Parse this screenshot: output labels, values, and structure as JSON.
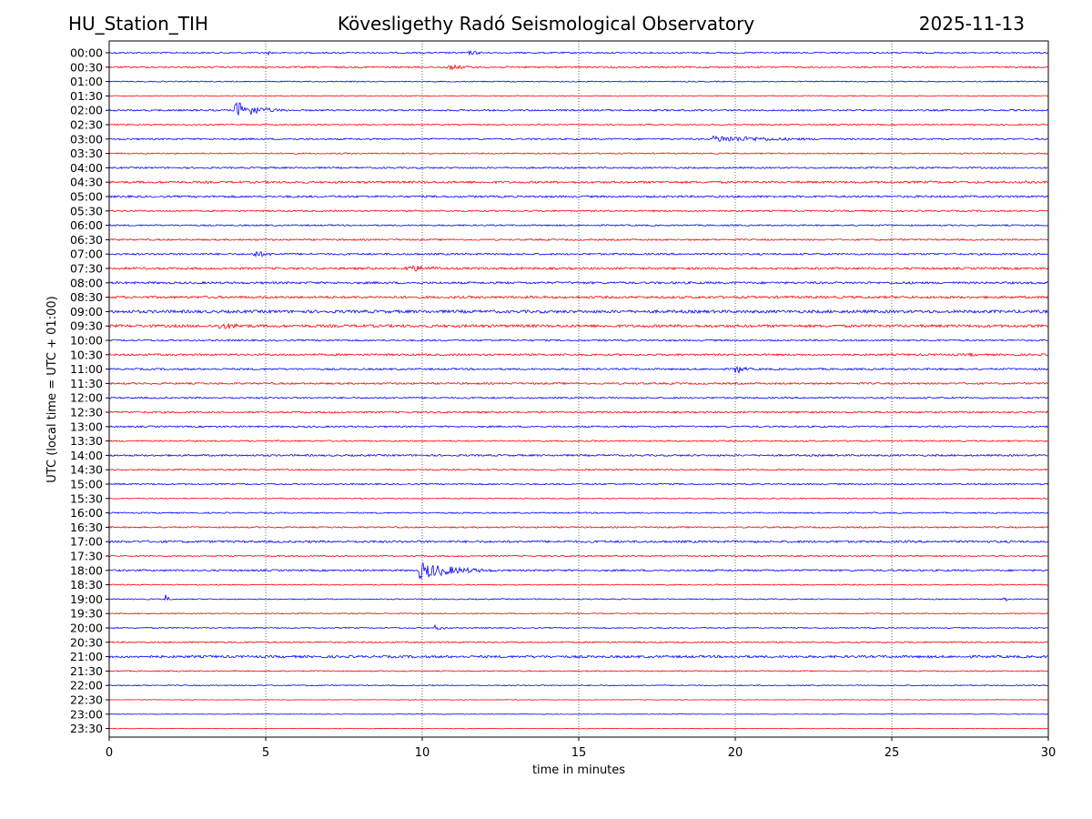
{
  "header": {
    "station": "HU_Station_TIH",
    "observatory": "Kövesligethy Radó Seismological Observatory",
    "date": "2025-11-13"
  },
  "chart_data": {
    "type": "line",
    "title": "Kövesligethy Radó Seismological Observatory",
    "xlabel": "time in minutes",
    "ylabel": "UTC (local time = UTC + 01:00)",
    "xlim": [
      0,
      30
    ],
    "x_ticks": [
      0,
      5,
      10,
      15,
      20,
      25,
      30
    ],
    "x_tick_labels": [
      "0",
      "5",
      "10",
      "15",
      "20",
      "25",
      "30"
    ],
    "grid": "vertical dotted at 5-minute intervals",
    "series_colors": [
      "#0000ff",
      "#ff0000"
    ],
    "rows": [
      "00:00",
      "00:30",
      "01:00",
      "01:30",
      "02:00",
      "02:30",
      "03:00",
      "03:30",
      "04:00",
      "04:30",
      "05:00",
      "05:30",
      "06:00",
      "06:30",
      "07:00",
      "07:30",
      "08:00",
      "08:30",
      "09:00",
      "09:30",
      "10:00",
      "10:30",
      "11:00",
      "11:30",
      "12:00",
      "12:30",
      "13:00",
      "13:30",
      "14:00",
      "14:30",
      "15:00",
      "15:30",
      "16:00",
      "16:30",
      "17:00",
      "17:30",
      "18:00",
      "18:30",
      "19:00",
      "19:30",
      "20:00",
      "20:30",
      "21:00",
      "21:30",
      "22:00",
      "22:30",
      "23:00",
      "23:30"
    ],
    "row_noise": [
      0.8,
      0.9,
      0.6,
      0.5,
      0.9,
      0.7,
      0.9,
      0.7,
      0.9,
      1.2,
      1.1,
      0.9,
      0.8,
      0.9,
      1.0,
      1.2,
      1.2,
      1.3,
      1.6,
      1.5,
      0.9,
      1.1,
      1.0,
      1.0,
      0.9,
      1.0,
      0.9,
      0.8,
      1.0,
      0.8,
      0.8,
      0.6,
      0.7,
      0.8,
      1.2,
      0.7,
      1.0,
      0.6,
      0.6,
      0.6,
      0.6,
      0.8,
      1.3,
      0.6,
      0.6,
      0.3,
      0.3,
      0.3
    ],
    "events": [
      {
        "row": 0,
        "minute": 5.1,
        "amp": 3,
        "dur": 0.15
      },
      {
        "row": 0,
        "minute": 11.5,
        "amp": 2.5,
        "dur": 1.0
      },
      {
        "row": 1,
        "minute": 10.8,
        "amp": 3,
        "dur": 1.5
      },
      {
        "row": 4,
        "minute": 4.0,
        "amp": 11,
        "dur": 1.2
      },
      {
        "row": 6,
        "minute": 19.3,
        "amp": 4,
        "dur": 4.0
      },
      {
        "row": 14,
        "minute": 4.6,
        "amp": 4,
        "dur": 1.0
      },
      {
        "row": 15,
        "minute": 9.5,
        "amp": 4,
        "dur": 2.0
      },
      {
        "row": 19,
        "minute": 3.5,
        "amp": 4,
        "dur": 2.0
      },
      {
        "row": 21,
        "minute": 27.5,
        "amp": 3,
        "dur": 0.3
      },
      {
        "row": 22,
        "minute": 20.0,
        "amp": 6,
        "dur": 0.5
      },
      {
        "row": 36,
        "minute": 9.9,
        "amp": 10,
        "dur": 2.0
      },
      {
        "row": 38,
        "minute": 1.8,
        "amp": 5,
        "dur": 0.2
      },
      {
        "row": 38,
        "minute": 28.6,
        "amp": 4,
        "dur": 0.15
      },
      {
        "row": 40,
        "minute": 10.4,
        "amp": 3,
        "dur": 0.6
      }
    ]
  }
}
